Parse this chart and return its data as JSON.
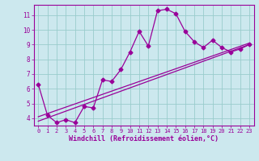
{
  "xlabel": "Windchill (Refroidissement éolien,°C)",
  "background_color": "#cce8ee",
  "line_color": "#990099",
  "grid_color": "#99cccc",
  "x_data": [
    0,
    1,
    2,
    3,
    4,
    5,
    6,
    7,
    8,
    9,
    10,
    11,
    12,
    13,
    14,
    15,
    16,
    17,
    18,
    19,
    20,
    21,
    22,
    23
  ],
  "y_data": [
    6.3,
    4.2,
    3.7,
    3.9,
    3.7,
    4.8,
    4.7,
    6.6,
    6.5,
    7.3,
    8.5,
    9.9,
    8.9,
    11.3,
    11.4,
    11.1,
    9.9,
    9.2,
    8.8,
    9.3,
    8.8,
    8.5,
    8.7,
    9.0
  ],
  "reg_line1": [
    4.1,
    9.1
  ],
  "reg_line2": [
    3.8,
    9.0
  ],
  "xlim": [
    -0.5,
    23.5
  ],
  "ylim": [
    3.5,
    11.7
  ],
  "yticks": [
    4,
    5,
    6,
    7,
    8,
    9,
    10,
    11
  ],
  "xticks": [
    0,
    1,
    2,
    3,
    4,
    5,
    6,
    7,
    8,
    9,
    10,
    11,
    12,
    13,
    14,
    15,
    16,
    17,
    18,
    19,
    20,
    21,
    22,
    23
  ]
}
